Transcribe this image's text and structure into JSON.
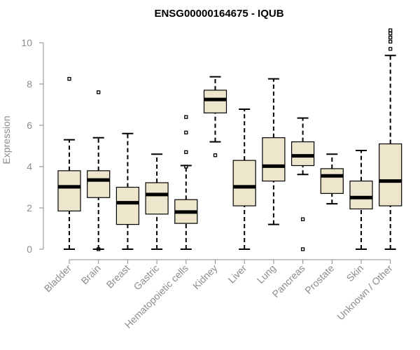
{
  "chart_data": {
    "type": "box",
    "title": "ENSG00000164675 - IQUB",
    "xlabel": "",
    "ylabel": "Expression",
    "ylim": [
      0,
      10.5
    ],
    "yticks": [
      0,
      2,
      4,
      6,
      8,
      10
    ],
    "categories": [
      "Bladder",
      "Brain",
      "Breast",
      "Gastric",
      "Hematopoietic cells",
      "Kidney",
      "Liver",
      "Lung",
      "Pancreas",
      "Prostate",
      "Skin",
      "Unknown / Other"
    ],
    "boxes": [
      {
        "min": 0.0,
        "q1": 1.85,
        "median": 3.02,
        "q3": 3.8,
        "max": 5.3,
        "outliers": [
          8.25
        ]
      },
      {
        "min": 0.0,
        "q1": 2.5,
        "median": 3.35,
        "q3": 3.8,
        "max": 5.4,
        "outliers": [
          7.6,
          0.0
        ]
      },
      {
        "min": 0.0,
        "q1": 1.2,
        "median": 2.25,
        "q3": 3.0,
        "max": 5.6,
        "outliers": []
      },
      {
        "min": 0.0,
        "q1": 1.7,
        "median": 2.65,
        "q3": 3.22,
        "max": 4.6,
        "outliers": []
      },
      {
        "min": 0.0,
        "q1": 1.25,
        "median": 1.8,
        "q3": 2.4,
        "max": 4.05,
        "outliers": [
          6.4,
          5.65,
          4.7,
          4.0
        ]
      },
      {
        "min": 5.2,
        "q1": 6.6,
        "median": 7.25,
        "q3": 7.7,
        "max": 8.35,
        "outliers": [
          4.55
        ]
      },
      {
        "min": 0.0,
        "q1": 2.1,
        "median": 3.02,
        "q3": 4.3,
        "max": 6.78,
        "outliers": []
      },
      {
        "min": 1.2,
        "q1": 3.3,
        "median": 4.02,
        "q3": 5.4,
        "max": 8.25,
        "outliers": []
      },
      {
        "min": 3.62,
        "q1": 4.05,
        "median": 4.52,
        "q3": 5.2,
        "max": 6.35,
        "outliers": [
          1.45,
          0.0
        ]
      },
      {
        "min": 2.2,
        "q1": 2.7,
        "median": 3.55,
        "q3": 3.9,
        "max": 4.6,
        "outliers": []
      },
      {
        "min": 0.0,
        "q1": 1.95,
        "median": 2.5,
        "q3": 3.3,
        "max": 4.78,
        "outliers": []
      },
      {
        "min": 0.0,
        "q1": 2.1,
        "median": 3.3,
        "q3": 5.1,
        "max": 9.38,
        "outliers": [
          9.7,
          10.05,
          10.25,
          10.45,
          10.6
        ]
      }
    ],
    "colors": {
      "box_fill": "#ede6cd",
      "line": "#000000",
      "axis": "#8c8c8c"
    }
  }
}
